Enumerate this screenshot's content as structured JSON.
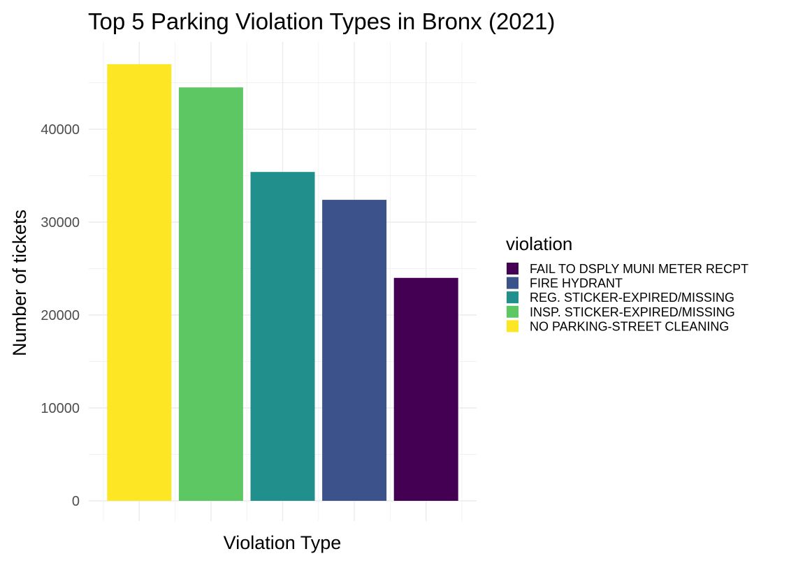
{
  "chart_data": {
    "type": "bar",
    "title": "Top 5 Parking Violation Types in Bronx (2021)",
    "xlabel": "Violation Type",
    "ylabel": "Number of tickets",
    "ylim": [
      0,
      47000
    ],
    "yticks": [
      0,
      10000,
      20000,
      30000,
      40000
    ],
    "grid": true,
    "legend": {
      "title": "violation",
      "position": "right",
      "entries": [
        {
          "label": "FAIL TO DSPLY MUNI METER RECPT",
          "color": "#440154"
        },
        {
          "label": "FIRE HYDRANT",
          "color": "#3B528B"
        },
        {
          "label": "REG. STICKER-EXPIRED/MISSING",
          "color": "#21908C"
        },
        {
          "label": "INSP. STICKER-EXPIRED/MISSING",
          "color": "#5DC863"
        },
        {
          "label": "NO PARKING-STREET CLEANING",
          "color": "#FDE725"
        }
      ]
    },
    "bars": [
      {
        "category": "NO PARKING-STREET CLEANING",
        "value": 47000,
        "color": "#FDE725"
      },
      {
        "category": "INSP. STICKER-EXPIRED/MISSING",
        "value": 44500,
        "color": "#5DC863"
      },
      {
        "category": "REG. STICKER-EXPIRED/MISSING",
        "value": 35400,
        "color": "#21908C"
      },
      {
        "category": "FIRE HYDRANT",
        "value": 32400,
        "color": "#3B528B"
      },
      {
        "category": "FAIL TO DSPLY MUNI METER RECPT",
        "value": 24000,
        "color": "#440154"
      }
    ]
  }
}
